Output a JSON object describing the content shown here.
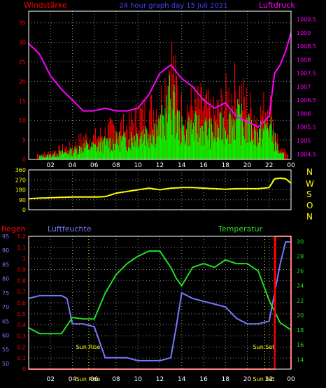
{
  "top": {
    "left_title": "Windstärke",
    "center_title": "24 hour graph day  15 Juli 2021",
    "right_title": "Luftdruck"
  },
  "wind_dir": {
    "letters": [
      "N",
      "W",
      "S",
      "O",
      "N"
    ]
  },
  "bottom": {
    "regen_label": "Regen",
    "feuchte_label": "Luftfeuchte",
    "temp_label": "Temperatur",
    "sunrise_label": "Sun Rise",
    "sunset_label": "Sun Set"
  },
  "colors": {
    "wind_gust": "#ff0000",
    "wind_avg": "#00ff00",
    "pressure": "#ff00ff",
    "direction": "#ffff00",
    "rain": "#ff0000",
    "humidity": "#7777ff",
    "temperature": "#22dd22",
    "grid": "#888888",
    "frame": "#ffffff"
  },
  "chart_data": [
    {
      "type": "bar",
      "title": "24 hour graph day  15 Juli 2021",
      "x_ticks": [
        "02",
        "04",
        "06",
        "08",
        "10",
        "12",
        "14",
        "16",
        "18",
        "20",
        "22",
        "00"
      ],
      "x_range_hours": [
        0,
        24
      ],
      "y_left_label": "Windstärke",
      "y_left_ticks": [
        0,
        5,
        10,
        15,
        20,
        25,
        30,
        35
      ],
      "y_left_range": [
        0,
        38
      ],
      "y_right_label": "Luftdruck",
      "y_right_ticks": [
        1004.5,
        1005,
        1005.5,
        1006,
        1006.5,
        1007,
        1007.5,
        1008,
        1008.5,
        1009,
        1009.5
      ],
      "y_right_range": [
        1004.3,
        1009.8
      ],
      "series": [
        {
          "name": "Windstärke",
          "kind": "bar",
          "x": [
            1.5,
            3,
            4,
            5,
            6,
            7,
            8,
            9,
            10,
            11,
            12,
            12.5,
            13,
            13.5,
            14,
            15,
            16,
            17,
            18,
            19,
            20,
            21,
            22,
            23
          ],
          "y": [
            2,
            4,
            5,
            8,
            8,
            10,
            12,
            12,
            16,
            18,
            20,
            28,
            38,
            27,
            18,
            20,
            20,
            16,
            22,
            26,
            20,
            15,
            22,
            3
          ]
        },
        {
          "name": "Luftdruck",
          "kind": "line",
          "x": [
            0,
            1,
            2,
            3,
            4,
            5,
            6,
            7,
            8,
            9,
            10,
            11,
            12,
            13,
            14,
            15,
            16,
            17,
            18,
            19,
            20,
            21,
            22,
            22.5,
            23,
            23.5,
            24
          ],
          "y": [
            1008.6,
            1008.2,
            1007.4,
            1006.9,
            1006.5,
            1006.1,
            1006.1,
            1006.2,
            1006.1,
            1006.1,
            1006.2,
            1006.7,
            1007.5,
            1007.8,
            1007.3,
            1007.0,
            1006.5,
            1006.2,
            1006.4,
            1005.9,
            1005.7,
            1005.5,
            1005.9,
            1007.5,
            1007.8,
            1008.3,
            1009.0
          ]
        }
      ]
    },
    {
      "type": "line",
      "y_right_labels": [
        "N",
        "W",
        "S",
        "O",
        "N"
      ],
      "y_ticks": [
        0,
        90,
        180,
        270,
        360
      ],
      "y_range": [
        0,
        360
      ],
      "series": [
        {
          "name": "Windrichtung",
          "x": [
            0,
            1,
            2,
            3,
            4,
            5,
            6,
            7,
            8,
            9,
            10,
            11,
            12,
            13,
            14,
            15,
            16,
            17,
            18,
            19,
            20,
            21,
            22,
            22.5,
            23,
            23.5,
            24
          ],
          "y": [
            100,
            105,
            108,
            112,
            115,
            115,
            115,
            118,
            150,
            165,
            180,
            195,
            180,
            195,
            200,
            200,
            195,
            190,
            185,
            190,
            190,
            190,
            200,
            280,
            285,
            280,
            240
          ]
        }
      ]
    },
    {
      "type": "line",
      "y_left_regen_ticks": [
        0,
        0.1,
        0.2,
        0.3,
        0.4,
        0.5,
        0.6,
        0.7,
        0.8,
        0.9,
        1,
        1.1,
        1.2
      ],
      "y_left_regen_range": [
        0,
        1.2
      ],
      "y_left_feuchte_ticks": [
        50,
        55,
        60,
        65,
        70,
        75,
        80,
        85,
        90,
        95
      ],
      "y_left_feuchte_range": [
        48,
        95
      ],
      "y_right_temp_ticks": [
        14,
        16,
        18,
        20,
        22,
        24,
        26,
        28,
        30
      ],
      "y_right_temp_range": [
        12.7,
        30.7
      ],
      "annotations": [
        "Sun Rise",
        "Sun Set"
      ],
      "series": [
        {
          "name": "Luftfeuchte",
          "x": [
            0,
            1,
            2,
            3,
            3.5,
            4,
            5,
            6,
            7,
            8,
            9,
            10,
            11,
            12,
            13,
            13.5,
            14,
            15,
            16,
            17,
            18,
            19,
            20,
            21,
            22,
            23,
            23.5,
            24
          ],
          "y": [
            73,
            74,
            74,
            74,
            73,
            64,
            64,
            63,
            52,
            52,
            52,
            51,
            51,
            51,
            52,
            63,
            75,
            73,
            72,
            71,
            70,
            66,
            64,
            64,
            65,
            85,
            93,
            93
          ]
        },
        {
          "name": "Temperatur",
          "x": [
            0,
            1,
            2,
            3,
            4,
            5,
            6,
            7,
            8,
            9,
            10,
            11,
            12,
            13,
            13.5,
            14,
            15,
            16,
            17,
            18,
            19,
            20,
            21,
            22,
            23,
            24
          ],
          "y": [
            18.3,
            17.5,
            17.5,
            17.5,
            19.7,
            19.5,
            19.5,
            23.0,
            25.5,
            27.0,
            28.0,
            28.7,
            28.7,
            26.5,
            25.0,
            24.0,
            26.5,
            27.0,
            26.5,
            27.5,
            27.0,
            27.0,
            26.0,
            22.0,
            19.0,
            18.0
          ]
        },
        {
          "name": "Regen",
          "x": [
            0,
            22.5,
            22.6,
            23.3,
            23.4,
            24
          ],
          "y": [
            0,
            0,
            1.2,
            1.2,
            1.2,
            1.2
          ]
        }
      ]
    }
  ]
}
